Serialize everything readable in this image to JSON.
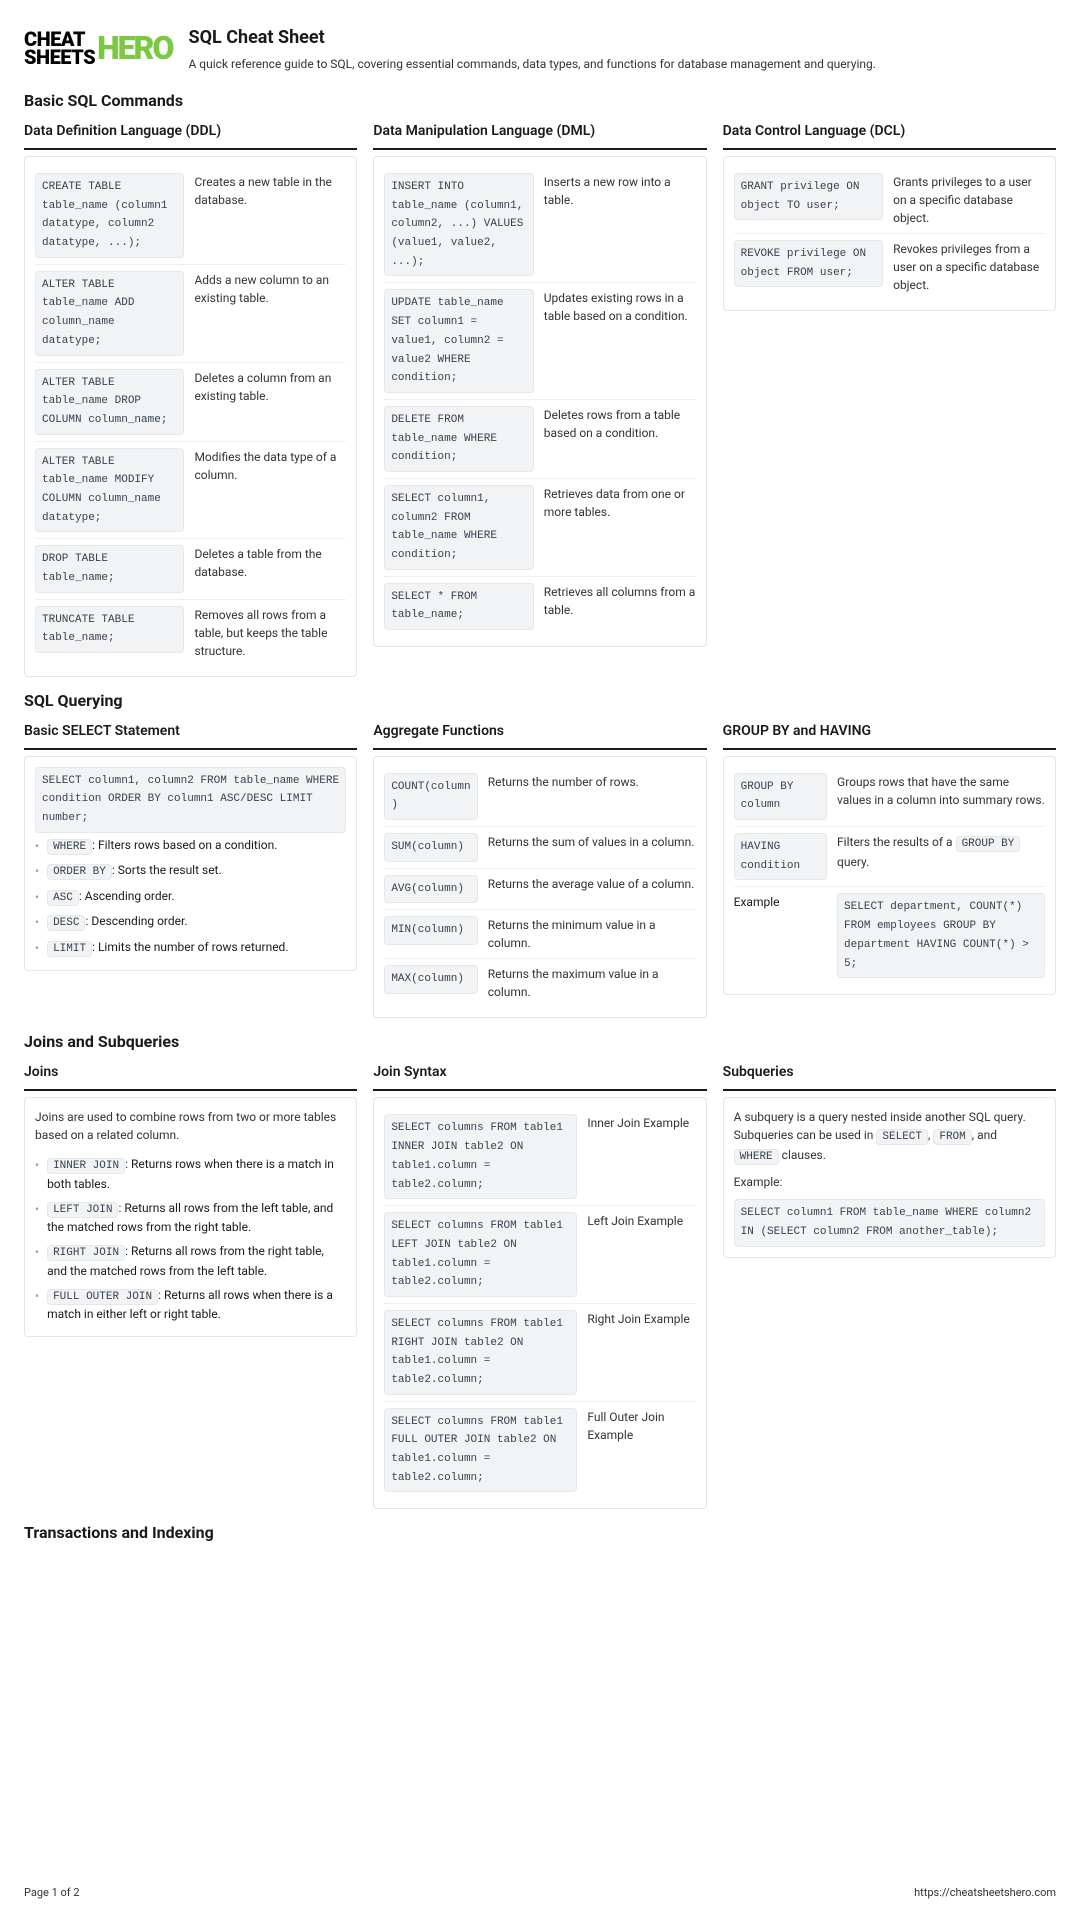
{
  "logo": {
    "line1": "CHEAT",
    "line2": "SHEETS",
    "right": "HERO"
  },
  "title": "SQL Cheat Sheet",
  "subtitle": "A quick reference guide to SQL, covering essential commands, data types, and functions for database management and querying.",
  "sections": {
    "basic": {
      "heading": "Basic SQL Commands",
      "ddl": {
        "title": "Data Definition Language (DDL)",
        "rows": [
          {
            "code": "CREATE TABLE table_name (column1 datatype, column2 datatype, ...);",
            "desc": "Creates a new table in the database."
          },
          {
            "code": "ALTER TABLE table_name ADD column_name datatype;",
            "desc": "Adds a new column to an existing table."
          },
          {
            "code": "ALTER TABLE table_name DROP COLUMN column_name;",
            "desc": "Deletes a column from an existing table."
          },
          {
            "code": "ALTER TABLE table_name MODIFY COLUMN column_name datatype;",
            "desc": "Modifies the data type of a column."
          },
          {
            "code": "DROP TABLE table_name;",
            "desc": "Deletes a table from the database."
          },
          {
            "code": "TRUNCATE TABLE table_name;",
            "desc": "Removes all rows from a table, but keeps the table structure."
          }
        ]
      },
      "dml": {
        "title": "Data Manipulation Language (DML)",
        "rows": [
          {
            "code": "INSERT INTO table_name (column1, column2, ...) VALUES (value1, value2, ...);",
            "desc": "Inserts a new row into a table."
          },
          {
            "code": "UPDATE table_name SET column1 = value1, column2 = value2 WHERE condition;",
            "desc": "Updates existing rows in a table based on a condition."
          },
          {
            "code": "DELETE FROM table_name WHERE condition;",
            "desc": "Deletes rows from a table based on a condition."
          },
          {
            "code": "SELECT column1, column2 FROM table_name WHERE condition;",
            "desc": "Retrieves data from one or more tables."
          },
          {
            "code": "SELECT * FROM table_name;",
            "desc": "Retrieves all columns from a table."
          }
        ]
      },
      "dcl": {
        "title": "Data Control Language (DCL)",
        "rows": [
          {
            "code": "GRANT privilege ON object TO user;",
            "desc": "Grants privileges to a user on a specific database object."
          },
          {
            "code": "REVOKE privilege ON object FROM user;",
            "desc": "Revokes privileges from a user on a specific database object."
          }
        ]
      }
    },
    "querying": {
      "heading": "SQL Querying",
      "select": {
        "title": "Basic SELECT Statement",
        "code": "SELECT column1, column2 FROM table_name WHERE condition ORDER BY column1 ASC/DESC LIMIT number;",
        "items": [
          {
            "code": "WHERE",
            "text": ": Filters rows based on a condition."
          },
          {
            "code": "ORDER BY",
            "text": ": Sorts the result set."
          },
          {
            "code": "ASC",
            "text": ": Ascending order."
          },
          {
            "code": "DESC",
            "text": ": Descending order."
          },
          {
            "code": "LIMIT",
            "text": ": Limits the number of rows returned."
          }
        ]
      },
      "aggregate": {
        "title": "Aggregate Functions",
        "rows": [
          {
            "code": "COUNT(column)",
            "desc": "Returns the number of rows."
          },
          {
            "code": "SUM(column)",
            "desc": "Returns the sum of values in a column."
          },
          {
            "code": "AVG(column)",
            "desc": "Returns the average value of a column."
          },
          {
            "code": "MIN(column)",
            "desc": "Returns the minimum value in a column."
          },
          {
            "code": "MAX(column)",
            "desc": "Returns the maximum value in a column."
          }
        ]
      },
      "groupby": {
        "title": "GROUP BY and HAVING",
        "rows": [
          {
            "code": "GROUP BY column",
            "desc": "Groups rows that have the same values in a column into summary rows."
          },
          {
            "code": "HAVING condition",
            "desc_pre": "Filters the results of a ",
            "desc_code": "GROUP BY",
            "desc_post": " query."
          },
          {
            "label": "Example",
            "example_code": "SELECT department, COUNT(*) FROM employees GROUP BY department HAVING COUNT(*) > 5;"
          }
        ]
      }
    },
    "joins": {
      "heading": "Joins and Subqueries",
      "joins_col": {
        "title": "Joins",
        "intro": "Joins are used to combine rows from two or more tables based on a related column.",
        "items": [
          {
            "code": "INNER JOIN",
            "text": ": Returns rows when there is a match in both tables."
          },
          {
            "code": "LEFT JOIN",
            "text": ": Returns all rows from the left table, and the matched rows from the right table."
          },
          {
            "code": "RIGHT JOIN",
            "text": ": Returns all rows from the right table, and the matched rows from the left table."
          },
          {
            "code": "FULL OUTER JOIN",
            "text": ": Returns all rows when there is a match in either left or right table."
          }
        ]
      },
      "syntax": {
        "title": "Join Syntax",
        "rows": [
          {
            "code": "SELECT columns FROM table1 INNER JOIN table2 ON table1.column = table2.column;",
            "desc": "Inner Join Example"
          },
          {
            "code": "SELECT columns FROM table1 LEFT JOIN table2 ON table1.column = table2.column;",
            "desc": "Left Join Example"
          },
          {
            "code": "SELECT columns FROM table1 RIGHT JOIN table2 ON table1.column = table2.column;",
            "desc": "Right Join Example"
          },
          {
            "code": "SELECT columns FROM table1 FULL OUTER JOIN table2 ON table1.column = table2.column;",
            "desc": "Full Outer Join Example"
          }
        ]
      },
      "subqueries": {
        "title": "Subqueries",
        "intro_pre": "A subquery is a query nested inside another SQL query. Subqueries can be used in ",
        "kw1": "SELECT",
        "kw2": "FROM",
        "kw3": "WHERE",
        "intro_post": " clauses.",
        "example_label": "Example:",
        "example_code": "SELECT column1 FROM table_name WHERE column2 IN (SELECT column2 FROM another_table);"
      }
    },
    "transactions": {
      "heading": "Transactions and Indexing"
    }
  },
  "footer": {
    "page": "Page 1 of 2",
    "url": "https://cheatsheetshero.com"
  }
}
